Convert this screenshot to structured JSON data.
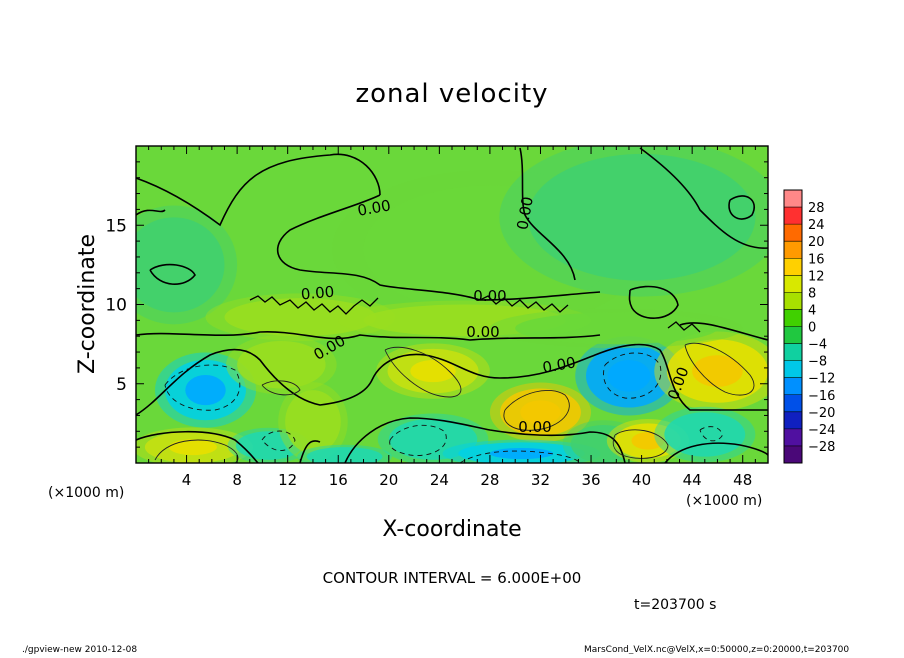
{
  "chart_data": {
    "type": "heatmap",
    "subtype": "contour",
    "title": "zonal velocity",
    "xlabel": "X-coordinate",
    "ylabel": "Z-coordinate",
    "x_unit": "(×1000 m)",
    "y_unit": "(×1000 m)",
    "x_ticks": [
      "4",
      "8",
      "12",
      "16",
      "20",
      "24",
      "28",
      "32",
      "36",
      "40",
      "44",
      "48"
    ],
    "y_ticks": [
      "5",
      "10",
      "15"
    ],
    "xlim": [
      0,
      50
    ],
    "ylim": [
      0,
      20
    ],
    "contour_interval_text": "CONTOUR INTERVAL = 6.000E+00",
    "contour_labels": [
      "0.00",
      "0.00",
      "0.00",
      "0.00",
      "0.00",
      "0.00",
      "0.00",
      "0.00",
      "0.00"
    ],
    "colorbar": {
      "labels": [
        "28",
        "24",
        "20",
        "16",
        "12",
        "8",
        "4",
        "0",
        "−4",
        "−8",
        "−12",
        "−16",
        "−20",
        "−24",
        "−28"
      ],
      "colors": [
        "#ff8888",
        "#ff3030",
        "#ff6a00",
        "#ff9a00",
        "#ffd000",
        "#d8e800",
        "#a8e000",
        "#40d000",
        "#20c840",
        "#10d0a0",
        "#00c8e8",
        "#0090ff",
        "#0050e8",
        "#1020c0",
        "#5010a0",
        "#4a0878"
      ]
    },
    "blobs": [
      {
        "x": 5.5,
        "z": 4.6,
        "rx": 3.2,
        "ry": 1.9,
        "v": -13
      },
      {
        "x": 4.5,
        "z": 1.0,
        "rx": 3.8,
        "ry": 1.0,
        "v": 10
      },
      {
        "x": 10.5,
        "z": 1.1,
        "rx": 2.6,
        "ry": 0.9,
        "v": -7
      },
      {
        "x": 11.5,
        "z": 6.2,
        "rx": 3.5,
        "ry": 1.5,
        "v": 5
      },
      {
        "x": 14.0,
        "z": 2.6,
        "rx": 2.2,
        "ry": 2.0,
        "v": 3
      },
      {
        "x": 16.5,
        "z": 0.4,
        "rx": 3.0,
        "ry": 0.6,
        "v": -6
      },
      {
        "x": 23.5,
        "z": 5.8,
        "rx": 3.6,
        "ry": 1.4,
        "v": 10
      },
      {
        "x": 23.5,
        "z": 1.5,
        "rx": 3.5,
        "ry": 1.3,
        "v": -8
      },
      {
        "x": 32.0,
        "z": 3.2,
        "rx": 3.2,
        "ry": 1.5,
        "v": 15
      },
      {
        "x": 30.5,
        "z": 0.6,
        "rx": 5.0,
        "ry": 0.7,
        "v": -12
      },
      {
        "x": 37.0,
        "z": 1.2,
        "rx": 2.6,
        "ry": 1.2,
        "v": -5
      },
      {
        "x": 39.0,
        "z": 5.5,
        "rx": 3.4,
        "ry": 2.0,
        "v": -14
      },
      {
        "x": 40.5,
        "z": 1.4,
        "rx": 2.6,
        "ry": 1.1,
        "v": 11
      },
      {
        "x": 46.0,
        "z": 5.8,
        "rx": 4.0,
        "ry": 2.0,
        "v": 12
      },
      {
        "x": 45.0,
        "z": 1.8,
        "rx": 3.2,
        "ry": 1.4,
        "v": -6
      },
      {
        "x": 3.0,
        "z": 12.5,
        "rx": 4.0,
        "ry": 3.0,
        "v": -2
      },
      {
        "x": 28.0,
        "z": 13.5,
        "rx": 10.0,
        "ry": 4.0,
        "v": -1.5
      },
      {
        "x": 40.0,
        "z": 15.5,
        "rx": 9.0,
        "ry": 4.0,
        "v": -3
      },
      {
        "x": 13.0,
        "z": 9.2,
        "rx": 6.0,
        "ry": 1.2,
        "v": 3
      },
      {
        "x": 26.0,
        "z": 9.0,
        "rx": 8.0,
        "ry": 1.0,
        "v": 3
      },
      {
        "x": 38.0,
        "z": 8.5,
        "rx": 8.0,
        "ry": 1.0,
        "v": 2
      }
    ]
  },
  "footer": {
    "time_text": "t=203700 s",
    "left_text": "./gpview-new  2010-12-08",
    "right_text": "MarsCond_VelX.nc@VelX,x=0:50000,z=0:20000,t=203700"
  }
}
